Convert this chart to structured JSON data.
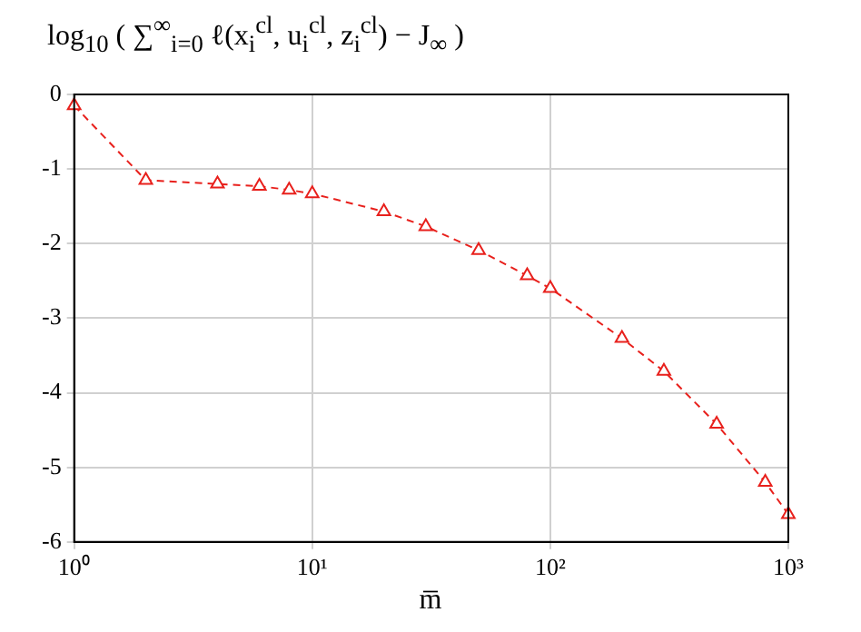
{
  "chart_data": {
    "type": "line",
    "ylabel": "log$_{10}$ ( ∑$^{∞}$$_{i=0}$ ℓ(x$_{i}$$^{cl}$, u$_{i}$$^{cl}$, z$_{i}$$^{cl}$) − J$_{∞}$ )",
    "xlabel": "m̅",
    "x": [
      1,
      2,
      4,
      6,
      8,
      10,
      20,
      30,
      50,
      80,
      100,
      200,
      300,
      500,
      800,
      1000
    ],
    "series": [
      {
        "color": "#e8201c",
        "values": [
          -0.15,
          -1.15,
          -1.2,
          -1.23,
          -1.28,
          -1.33,
          -1.57,
          -1.77,
          -2.09,
          -2.43,
          -2.6,
          -3.27,
          -3.71,
          -4.42,
          -5.2,
          -5.63
        ]
      }
    ],
    "log": "x",
    "xlim": [
      1,
      1000
    ],
    "xticks": [
      {
        "value": 1,
        "label": "10⁰"
      },
      {
        "value": 10,
        "label": "10¹"
      },
      {
        "value": 100,
        "label": "10²"
      },
      {
        "value": 1000,
        "label": "10³"
      }
    ],
    "ylim": [
      -6,
      0
    ],
    "yticks": [
      -6,
      -5,
      -4,
      -3,
      -2,
      -1,
      0
    ],
    "grid": true,
    "marker": "triangle",
    "line_style": "dashed",
    "legend": false
  }
}
